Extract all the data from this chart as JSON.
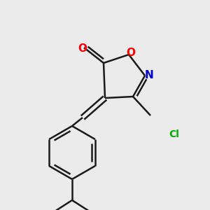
{
  "background_color": "#ebebeb",
  "bond_color": "#1a1a1a",
  "bond_width": 1.8,
  "fig_size": [
    3.0,
    3.0
  ],
  "dpi": 100,
  "atoms": {
    "O_carbonyl": {
      "label": "O",
      "color": "#ff0000",
      "fontsize": 11
    },
    "O_ring": {
      "label": "O",
      "color": "#ff0000",
      "fontsize": 11
    },
    "N_ring": {
      "label": "N",
      "color": "#0000cc",
      "fontsize": 11
    },
    "Cl": {
      "label": "Cl",
      "color": "#00aa00",
      "fontsize": 10
    }
  }
}
